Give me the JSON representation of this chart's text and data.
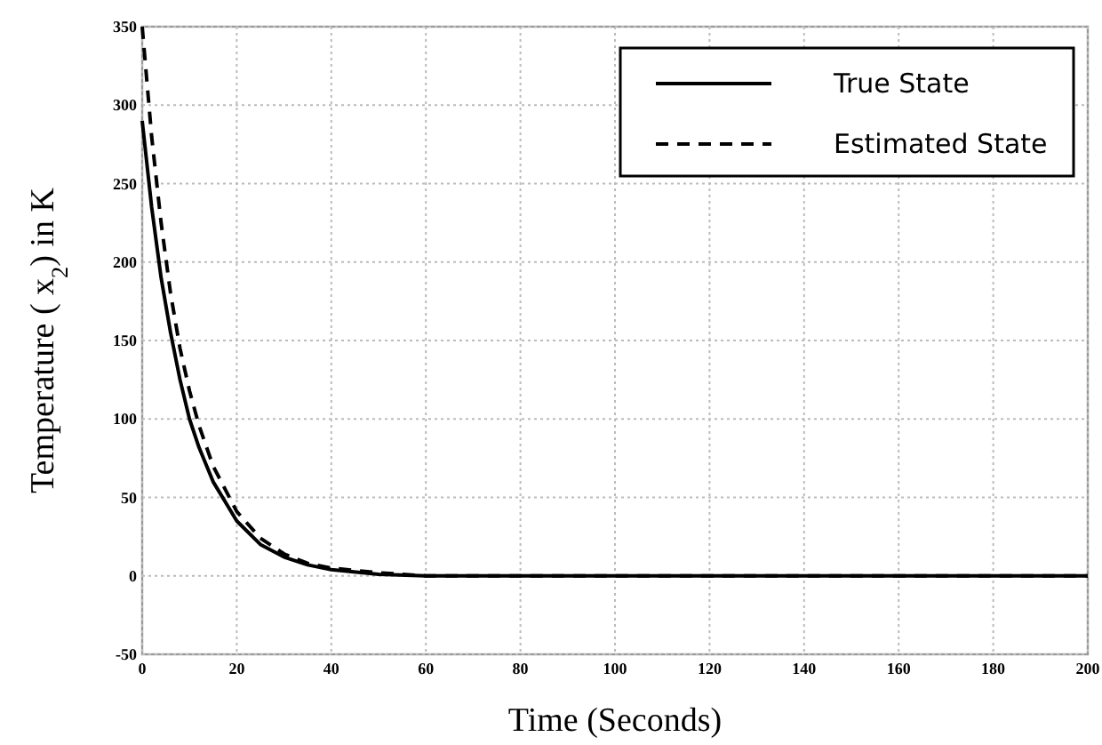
{
  "chart_data": {
    "type": "line",
    "xlabel": "Time (Seconds)",
    "ylabel": "Temperature ( x$_{2}$) in K",
    "xlim": [
      0,
      200
    ],
    "ylim": [
      -50,
      350
    ],
    "xticks": [
      0,
      20,
      40,
      60,
      80,
      100,
      120,
      140,
      160,
      180,
      200
    ],
    "yticks": [
      -50,
      0,
      50,
      100,
      150,
      200,
      250,
      300,
      350
    ],
    "grid": true,
    "legend": "top right",
    "marker": "none",
    "series": [
      {
        "name": "True State",
        "color": "#000000",
        "line_style": "solid",
        "x": [
          0,
          2,
          4,
          6,
          8,
          10,
          12,
          15,
          20,
          25,
          30,
          35,
          40,
          50,
          60,
          100,
          200
        ],
        "values": [
          290,
          235,
          190,
          155,
          125,
          100,
          82,
          60,
          35,
          20,
          12,
          7,
          4,
          1,
          0,
          0,
          0
        ]
      },
      {
        "name": "Estimated State",
        "color": "#000000",
        "line_style": "dashed",
        "x": [
          0,
          2,
          4,
          6,
          8,
          10,
          12,
          15,
          20,
          25,
          30,
          35,
          40,
          50,
          60,
          100,
          200
        ],
        "values": [
          350,
          280,
          225,
          180,
          145,
          118,
          96,
          70,
          41,
          24,
          14,
          8,
          5,
          2,
          0,
          0,
          0
        ]
      }
    ]
  }
}
